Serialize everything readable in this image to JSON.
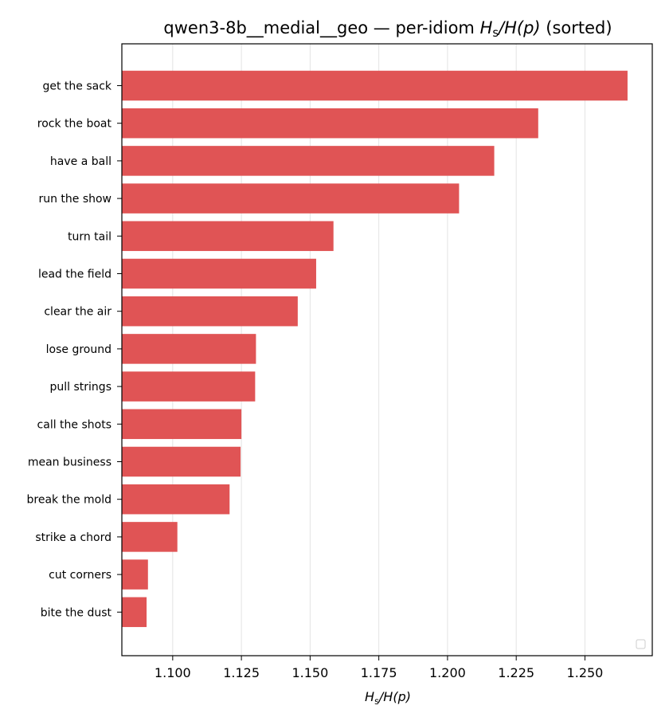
{
  "chart_data": {
    "type": "bar",
    "orientation": "horizontal",
    "title": {
      "prefix": "qwen3-8b__medial__geo — per-idiom ",
      "math": "H_s/H(p)",
      "suffix": " (sorted)"
    },
    "xlabel": "H_s/H(p)",
    "ylabel": "",
    "xlim": [
      1.0815,
      1.2745
    ],
    "xticks": [
      "1.100",
      "1.125",
      "1.150",
      "1.175",
      "1.200",
      "1.225",
      "1.250"
    ],
    "xtick_values": [
      1.1,
      1.125,
      1.15,
      1.175,
      1.2,
      1.225,
      1.25
    ],
    "grid": "vertical",
    "legend": "lower-right (empty)",
    "bar_color": "#e05455",
    "categories": [
      "get the sack",
      "rock the boat",
      "have a ball",
      "run the show",
      "turn tail",
      "lead the field",
      "clear the air",
      "lose ground",
      "pull strings",
      "call the shots",
      "mean business",
      "break the mold",
      "strike a chord",
      "cut corners",
      "bite the dust"
    ],
    "values": [
      1.2655,
      1.233,
      1.217,
      1.2042,
      1.1585,
      1.1522,
      1.1455,
      1.1303,
      1.13,
      1.125,
      1.1247,
      1.1207,
      1.1017,
      1.091,
      1.0905
    ]
  }
}
